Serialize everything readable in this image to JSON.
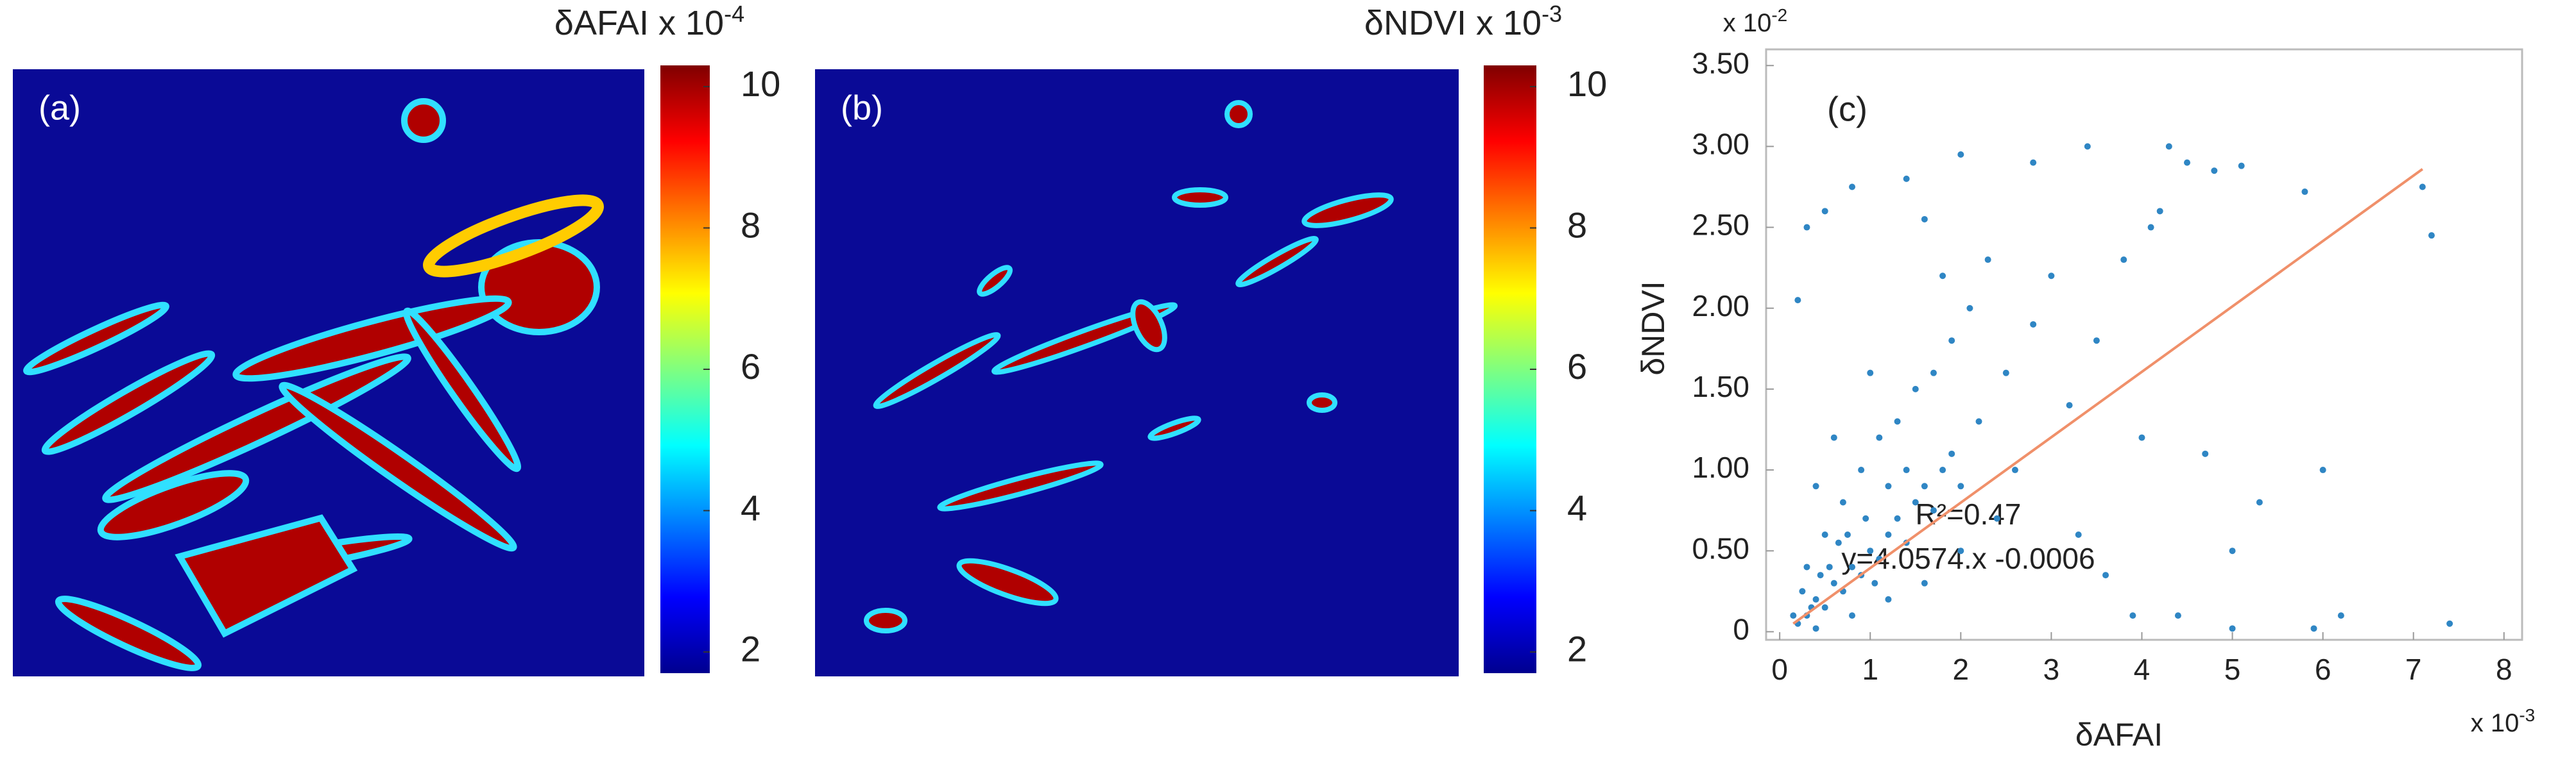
{
  "chart_data": [
    {
      "type": "heatmap",
      "panel_label": "(a)",
      "colorbar_label": "δAFAI x 10",
      "colorbar_exponent": "-4",
      "clim": [
        1.7,
        10.3
      ],
      "cticks": [
        2,
        4,
        6,
        8,
        10
      ]
    },
    {
      "type": "heatmap",
      "panel_label": "(b)",
      "colorbar_label": "δNDVI x 10",
      "colorbar_exponent": "-3",
      "clim": [
        1.7,
        10.3
      ],
      "cticks": [
        2,
        4,
        6,
        8,
        10
      ]
    },
    {
      "type": "scatter",
      "panel_label": "(c)",
      "x_label": "δAFAI",
      "y_label": "δNDVI",
      "x_multiplier": "x 10",
      "x_exponent": "-3",
      "y_multiplier": "x 10",
      "y_exponent": "-2",
      "xlim": [
        -0.15,
        8.2
      ],
      "xticks": [
        0,
        1,
        2,
        3,
        4,
        5,
        6,
        7,
        8
      ],
      "ylim": [
        -0.05,
        3.6
      ],
      "yticks": [
        0,
        {
          "value": 0.5,
          "label": "0.50"
        },
        {
          "value": 1,
          "label": "1.00"
        },
        {
          "value": 1.5,
          "label": "1.50"
        },
        {
          "value": 2,
          "label": "2.00"
        },
        {
          "value": 2.5,
          "label": "2.50"
        },
        {
          "value": 3,
          "label": "3.00"
        },
        {
          "value": 3.5,
          "label": "3.50"
        }
      ],
      "color": "#2f86c4",
      "x": [
        0.2,
        0.3,
        0.4,
        0.5,
        0.6,
        0.7,
        0.8,
        0.9,
        1.0,
        1.1,
        1.2,
        1.3,
        1.4,
        1.5,
        1.6,
        1.7,
        1.8,
        1.9,
        2.0,
        0.3,
        0.5,
        0.7,
        0.9,
        1.1,
        1.3,
        1.5,
        1.7,
        1.9,
        2.1,
        0.4,
        0.8,
        1.2,
        1.6,
        2.0,
        2.4,
        2.2,
        2.5,
        2.8,
        3.0,
        3.2,
        2.6,
        3.5,
        3.8,
        4.0,
        4.2,
        4.5,
        4.3,
        4.8,
        5.1,
        5.8,
        7.1,
        7.2,
        2.0,
        2.8,
        1.6,
        1.4,
        0.8,
        0.5,
        0.2,
        0.3,
        3.3,
        3.9,
        4.4,
        5.0,
        5.3,
        4.7,
        3.6,
        5.0,
        5.9,
        6.2,
        7.4,
        6.0,
        4.1,
        3.4,
        2.3,
        1.8,
        1.0,
        0.6,
        0.4,
        1.2,
        1.4,
        0.95,
        0.65,
        1.05,
        0.45,
        0.25,
        0.15,
        0.35,
        0.55,
        0.75
      ],
      "y": [
        0.05,
        0.1,
        0.2,
        0.15,
        0.3,
        0.25,
        0.4,
        0.35,
        0.5,
        0.45,
        0.6,
        0.7,
        0.55,
        0.8,
        0.9,
        0.75,
        1.0,
        1.1,
        0.9,
        0.4,
        0.6,
        0.8,
        1.0,
        1.2,
        1.3,
        1.5,
        1.6,
        1.8,
        2.0,
        0.02,
        0.1,
        0.2,
        0.3,
        0.5,
        0.7,
        1.3,
        1.6,
        1.9,
        2.2,
        1.4,
        1.0,
        1.8,
        2.3,
        1.2,
        2.6,
        2.9,
        3.0,
        2.85,
        2.88,
        2.72,
        2.75,
        2.45,
        2.95,
        2.9,
        2.55,
        2.8,
        2.75,
        2.6,
        2.05,
        2.5,
        0.6,
        0.1,
        0.1,
        0.5,
        0.8,
        1.1,
        0.35,
        0.02,
        0.02,
        0.1,
        0.05,
        1.0,
        2.5,
        3.0,
        2.3,
        2.2,
        1.6,
        1.2,
        0.9,
        0.9,
        1.0,
        0.7,
        0.55,
        0.3,
        0.35,
        0.25,
        0.1,
        0.15,
        0.4,
        0.6
      ],
      "fit": {
        "x": [
          0.15,
          7.1
        ],
        "y": [
          0.05,
          2.86
        ],
        "color": "#f0906a"
      },
      "annotations": [
        "R²=0.47",
        "y=4.0574.x -0.0006"
      ]
    }
  ]
}
